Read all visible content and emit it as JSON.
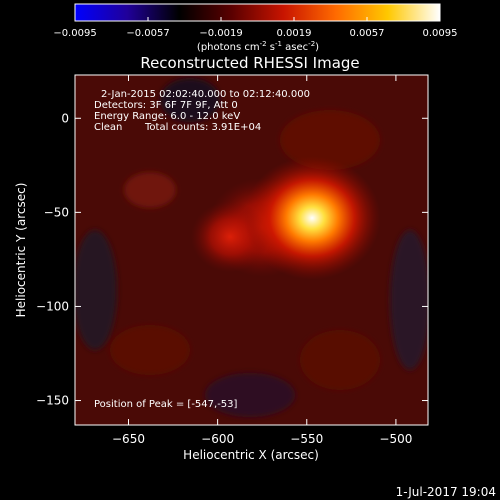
{
  "colorbar": {
    "ticks": [
      "-0.0095",
      "-0.0057",
      "-0.0019",
      "0.0019",
      "0.0057",
      "0.0095"
    ],
    "unit_base": "(photons cm",
    "unit_exp1": "-2",
    "unit_mid": " s",
    "unit_exp2": "-1",
    "unit_mid2": " asec",
    "unit_exp3": "-2",
    "unit_end": ")",
    "colors": [
      "#0000ff",
      "#20009a",
      "#000000",
      "#5a0000",
      "#c81400",
      "#ff6a00",
      "#ffc800",
      "#ffffff"
    ]
  },
  "chart_data": {
    "type": "heatmap",
    "title": "Reconstructed RHESSI Image",
    "xlabel": "Heliocentric X (arcsec)",
    "ylabel": "Heliocentric Y (arcsec)",
    "xlim": [
      -680,
      -482
    ],
    "ylim": [
      -163,
      23
    ],
    "x_ticks": [
      -650,
      -600,
      -550,
      -500
    ],
    "y_ticks": [
      0,
      -50,
      -100,
      -150
    ],
    "x_tick_labels": [
      "−650",
      "−600",
      "−550",
      "−500"
    ],
    "y_tick_labels": [
      "0",
      "−50",
      "−100",
      "−150"
    ],
    "value_range": [
      -0.0095,
      0.0095
    ],
    "sources": [
      {
        "x": -547,
        "y": -53,
        "value": 0.0095,
        "width": 12
      },
      {
        "x": -593,
        "y": -63,
        "value": 0.0042,
        "width": 10
      },
      {
        "x": -575,
        "y": -58,
        "value": 0.0025,
        "width": 14
      }
    ],
    "annotations": {
      "time_range": "2-Jan-2015 02:02:40.000 to 02:12:40.000",
      "detectors": "Detectors: 3F 6F 7F 9F, Att 0",
      "energy_range": "Energy Range: 6.0 - 12.0 keV",
      "method": "Clean",
      "total_counts": "Total counts: 3.91E+04",
      "peak_position": "Position of Peak = [-547,-53]"
    }
  },
  "footer": {
    "timestamp": "1-Jul-2017 19:04"
  }
}
